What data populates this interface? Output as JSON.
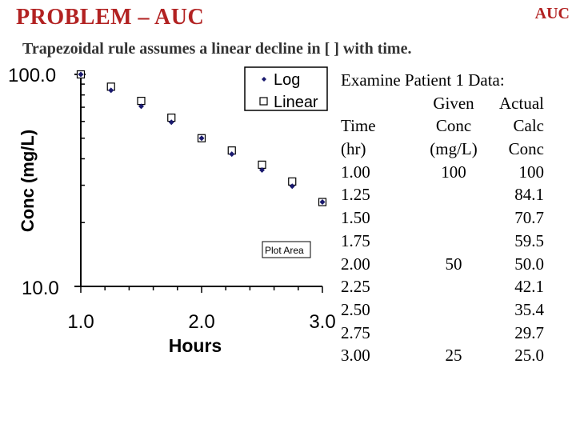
{
  "header": {
    "title": "PROBLEM – AUC",
    "corner": "AUC",
    "subtitle": "Trapezoidal rule assumes a linear decline in [ ] with time."
  },
  "colors": {
    "title": "#b22222",
    "subtitle": "#333333",
    "marker": "#1a1a6e"
  },
  "chart_data": {
    "type": "scatter",
    "ylabel": "Conc (mg/L)",
    "xlabel": "Hours",
    "y_scale": "log",
    "ylim": [
      10,
      100
    ],
    "xlim": [
      1.0,
      3.0
    ],
    "y_tick_labels": [
      "100.0",
      "10.0"
    ],
    "x_tick_labels": [
      "1.0",
      "2.0",
      "3.0"
    ],
    "legend_position": "top-right",
    "plot_area_label": "Plot Area",
    "series": [
      {
        "name": "Log",
        "marker": "filled-diamond",
        "x": [
          1.0,
          1.25,
          1.5,
          1.75,
          2.0,
          2.25,
          2.5,
          2.75,
          3.0
        ],
        "y": [
          100,
          84.1,
          70.7,
          59.5,
          50.0,
          42.1,
          35.4,
          29.7,
          25.0
        ]
      },
      {
        "name": "Linear",
        "marker": "open-square",
        "x": [
          1.0,
          1.25,
          1.5,
          1.75,
          2.0,
          2.25,
          2.5,
          2.75,
          3.0
        ],
        "y": [
          100,
          87.5,
          75,
          62.5,
          50,
          43.75,
          37.5,
          31.25,
          25
        ]
      }
    ]
  },
  "table": {
    "heading": "Examine Patient 1 Data:",
    "header_rows": [
      [
        "",
        "Given",
        "Actual"
      ],
      [
        "Time",
        "Conc",
        "Calc"
      ],
      [
        "(hr)",
        "(mg/L)",
        "Conc"
      ]
    ],
    "rows": [
      [
        "1.00",
        "100",
        "100"
      ],
      [
        "1.25",
        "",
        "84.1"
      ],
      [
        "1.50",
        "",
        "70.7"
      ],
      [
        "1.75",
        "",
        "59.5"
      ],
      [
        "2.00",
        "50",
        "50.0"
      ],
      [
        "2.25",
        "",
        "42.1"
      ],
      [
        "2.50",
        "",
        "35.4"
      ],
      [
        "2.75",
        "",
        "29.7"
      ],
      [
        "3.00",
        "25",
        "25.0"
      ]
    ]
  }
}
